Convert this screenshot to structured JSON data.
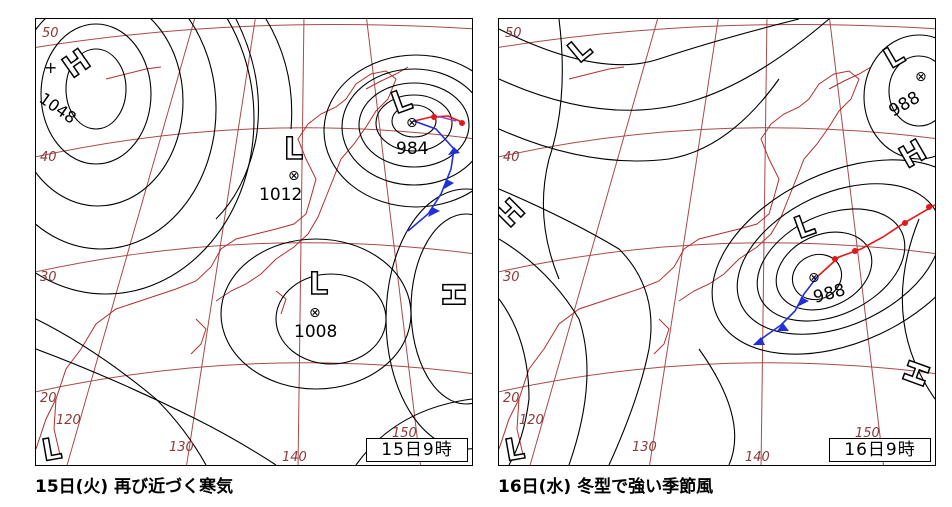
{
  "maps": [
    {
      "stamp": "15日9時",
      "caption": "15日(火) 再び近づく寒気",
      "lat_labels": [
        "50",
        "40",
        "30",
        "20"
      ],
      "lon_labels": [
        "120",
        "130",
        "140",
        "150"
      ],
      "highs": [
        {
          "label": "H",
          "pressure": "1048"
        },
        {
          "label": "H",
          "pressure": ""
        }
      ],
      "lows": [
        {
          "label": "L",
          "pressure": "984"
        },
        {
          "label": "L",
          "pressure": "1012"
        },
        {
          "label": "L",
          "pressure": "1008"
        },
        {
          "label": "L",
          "pressure": ""
        }
      ]
    },
    {
      "stamp": "16日9時",
      "caption": "16日(水) 冬型で強い季節風",
      "lat_labels": [
        "50",
        "40",
        "30",
        "20"
      ],
      "lon_labels": [
        "120",
        "130",
        "140",
        "150"
      ],
      "highs": [
        {
          "label": "H",
          "pressure": ""
        },
        {
          "label": "H",
          "pressure": ""
        },
        {
          "label": "H",
          "pressure": ""
        }
      ],
      "lows": [
        {
          "label": "L",
          "pressure": "988"
        },
        {
          "label": "L",
          "pressure": "988"
        },
        {
          "label": "L",
          "pressure": ""
        },
        {
          "label": "L",
          "pressure": ""
        }
      ]
    }
  ],
  "colors": {
    "isobar": "#000000",
    "grid": "#a84a4a",
    "coast": "#b03030",
    "warm_front": "#e01818",
    "cold_front": "#2030d8"
  }
}
